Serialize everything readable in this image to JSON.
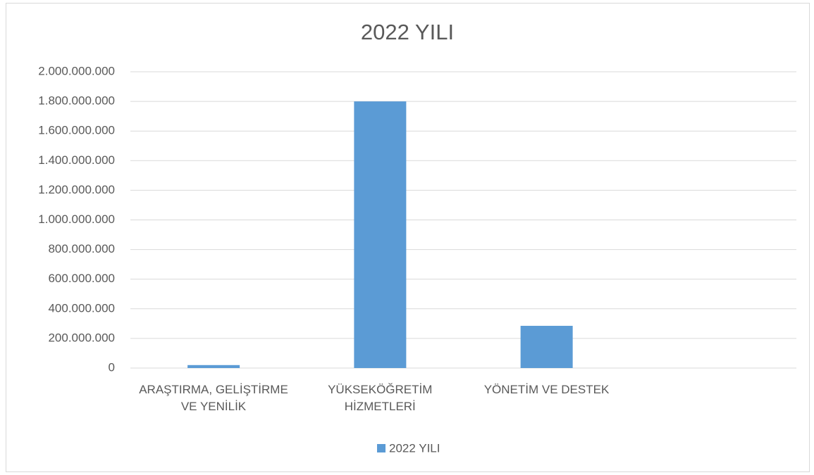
{
  "chart_data": {
    "type": "bar",
    "title": "2022 YILI",
    "categories": [
      "ARAŞTIRMA, GELİŞTİRME VE YENİLİK",
      "YÜKSEKÖĞRETİM HİZMETLERİ",
      "YÖNETİM VE DESTEK",
      null
    ],
    "series": [
      {
        "name": "2022 YILI",
        "color": "#5b9bd5",
        "values": [
          20000000,
          1800000000,
          285000000,
          null
        ]
      }
    ],
    "ylim": [
      0,
      2000000000
    ],
    "yticks": [
      {
        "value": 0,
        "label": "0"
      },
      {
        "value": 200000000,
        "label": "200.000.000"
      },
      {
        "value": 400000000,
        "label": "400.000.000"
      },
      {
        "value": 600000000,
        "label": "600.000.000"
      },
      {
        "value": 800000000,
        "label": "800.000.000"
      },
      {
        "value": 1000000000,
        "label": "1.000.000.000"
      },
      {
        "value": 1200000000,
        "label": "1.200.000.000"
      },
      {
        "value": 1400000000,
        "label": "1.400.000.000"
      },
      {
        "value": 1600000000,
        "label": "1.600.000.000"
      },
      {
        "value": 1800000000,
        "label": "1.800.000.000"
      },
      {
        "value": 2000000000,
        "label": "2.000.000.000"
      }
    ],
    "grid": true,
    "legend": "bottom"
  }
}
